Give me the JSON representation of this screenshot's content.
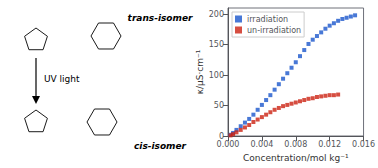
{
  "chart_data": {
    "type": "scatter",
    "xlabel": "Concentration/mol kg⁻¹",
    "ylabel": "κ/μS·cm⁻¹",
    "xlim": [
      0.0,
      0.016
    ],
    "ylim": [
      0,
      210
    ],
    "xticks": [
      {
        "value": 0.0,
        "label": "0.000"
      },
      0.004,
      0.008,
      0.012,
      0.016
    ],
    "yticks": [
      0,
      50,
      100,
      150,
      200
    ],
    "grid": false,
    "legend": "upper left",
    "marker": "square",
    "series": [
      {
        "name": "irradiation",
        "color": "#1a56cc",
        "x": [
          0.0003,
          0.0006,
          0.001,
          0.0015,
          0.002,
          0.0025,
          0.003,
          0.0035,
          0.004,
          0.0045,
          0.005,
          0.0055,
          0.006,
          0.0065,
          0.007,
          0.0075,
          0.008,
          0.0085,
          0.009,
          0.0095,
          0.01,
          0.0105,
          0.011,
          0.0115,
          0.012,
          0.0125,
          0.013,
          0.0135,
          0.014,
          0.0145,
          0.015
        ],
        "values": [
          2,
          5,
          10,
          16,
          22,
          28,
          35,
          43,
          51,
          59,
          67,
          76,
          85,
          94,
          103,
          112,
          121,
          131,
          141,
          151,
          158,
          164,
          170,
          176,
          181,
          185,
          189,
          192,
          194,
          196,
          198
        ]
      },
      {
        "name": "un-irradiation",
        "color": "#cc2211",
        "x": [
          0.0003,
          0.0006,
          0.001,
          0.0015,
          0.002,
          0.0025,
          0.003,
          0.0035,
          0.004,
          0.0045,
          0.005,
          0.0055,
          0.006,
          0.0065,
          0.007,
          0.0075,
          0.008,
          0.0085,
          0.009,
          0.0095,
          0.01,
          0.0105,
          0.011,
          0.0115,
          0.012,
          0.0125,
          0.013
        ],
        "values": [
          1,
          3,
          6,
          10,
          14,
          18,
          23,
          27,
          31,
          35,
          39,
          43,
          46,
          49,
          51,
          53,
          55,
          57,
          59,
          61,
          62,
          64,
          65,
          66,
          67,
          67,
          68
        ]
      }
    ],
    "annotations": [
      "UV light",
      "trans-isomer",
      "cis-isomer"
    ]
  }
}
